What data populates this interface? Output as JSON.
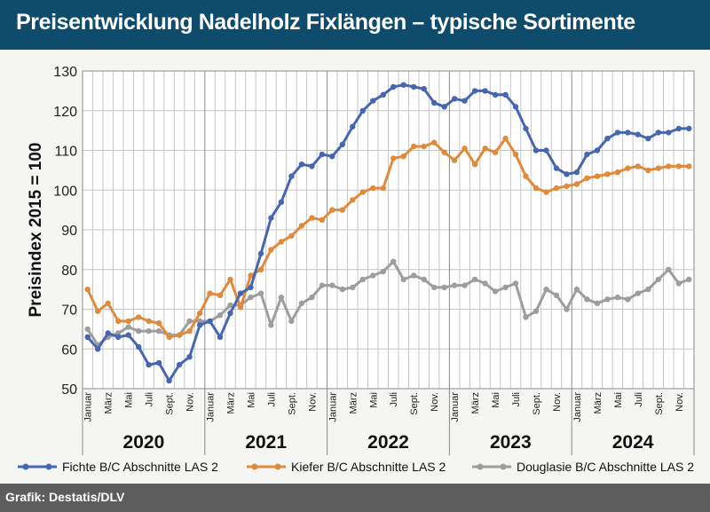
{
  "title": "Preisentwicklung Nadelholz Fixlängen – typische Sortimente",
  "source": "Grafik: Destatis/DLV",
  "colors": {
    "header": "#0f4b6a",
    "footer": "#5d5d5d",
    "Fichte": "#4667b0",
    "Kiefer": "#e08a3c",
    "Douglasie": "#9d9d9d"
  },
  "chart_data": {
    "type": "line",
    "ylabel": "Preisindex 2015 = 100",
    "ylim": [
      50,
      130
    ],
    "yticks": [
      50,
      60,
      70,
      80,
      90,
      100,
      110,
      120,
      130
    ],
    "grid": true,
    "legend": "bottom",
    "years": [
      "2020",
      "2021",
      "2022",
      "2023",
      "2024"
    ],
    "month_labels": [
      "Januar",
      "",
      "März",
      "",
      "Mai",
      "",
      "Juli",
      "",
      "Sept.",
      "",
      "Nov.",
      ""
    ],
    "series": [
      {
        "name": "Fichte B/C Abschnitte LAS 2",
        "values": [
          63,
          60,
          64,
          63,
          63.5,
          60.5,
          56,
          56.5,
          52,
          56,
          58,
          66,
          67,
          63,
          69,
          74,
          75.5,
          84,
          93,
          97,
          103.5,
          106.5,
          106,
          109,
          108.5,
          111.5,
          116,
          120,
          122.5,
          124,
          126,
          126.5,
          126,
          125.5,
          122,
          121,
          123,
          122.5,
          125,
          125,
          124,
          124,
          121,
          115.5,
          110,
          110,
          105.5,
          104,
          104.5,
          109,
          110,
          113,
          114.5,
          114.5,
          114,
          113,
          114.5,
          114.5,
          115.5,
          115.5
        ]
      },
      {
        "name": "Kiefer B/C Abschnitte LAS 2",
        "values": [
          75,
          69.5,
          71.5,
          67,
          67,
          68,
          67,
          66.5,
          63,
          63.5,
          64.5,
          69,
          74,
          73.5,
          77.5,
          70.5,
          78.5,
          80,
          85,
          87,
          88.5,
          91,
          93,
          92.5,
          95,
          95,
          97.5,
          99.5,
          100.5,
          100.5,
          108,
          108.5,
          111,
          111,
          112,
          109.5,
          107.5,
          110.5,
          106.5,
          110.5,
          109.5,
          113,
          109,
          103.5,
          100.5,
          99.5,
          100.5,
          101,
          101.5,
          103,
          103.5,
          104,
          104.5,
          105.5,
          106,
          105,
          105.5,
          106,
          106,
          106
        ]
      },
      {
        "name": "Douglasie B/C Abschnitte LAS 2",
        "values": [
          65,
          61,
          63,
          64,
          65.5,
          64.5,
          64.5,
          64.5,
          63.5,
          63.5,
          67,
          67,
          67,
          68.5,
          71,
          71,
          73,
          74,
          66,
          73,
          67,
          71.5,
          73,
          76,
          76,
          75,
          75.5,
          77.5,
          78.5,
          79.5,
          82,
          77.5,
          78.5,
          77.5,
          75.5,
          75.5,
          76,
          76,
          77.5,
          76.5,
          74.5,
          75.5,
          76.5,
          68,
          69.5,
          75,
          73.5,
          70,
          75,
          72.5,
          71.5,
          72.5,
          73,
          72.5,
          74,
          75,
          77.5,
          80,
          76.5,
          77.5
        ]
      }
    ]
  }
}
